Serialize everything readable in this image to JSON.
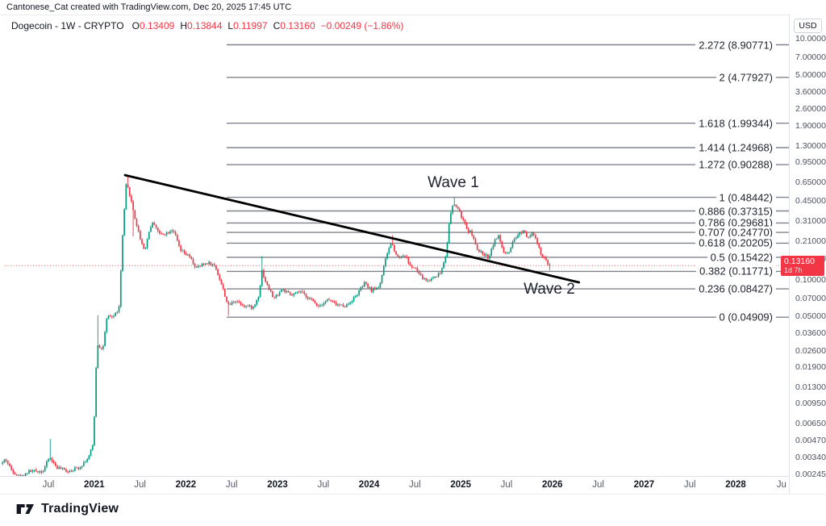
{
  "attribution": "Cantonese_Cat created with TradingView.com, Dec 20, 2025 17:45 UTC",
  "legend": {
    "title": "Dogecoin - 1W - CRYPTO",
    "o_label": "O",
    "o": "0.13409",
    "h_label": "H",
    "h": "0.13844",
    "l_label": "L",
    "l": "0.11997",
    "c_label": "C",
    "c": "0.13160",
    "change": "−0.00249 (−1.86%)"
  },
  "colors": {
    "up": "#089981",
    "down": "#f23645",
    "trendline": "#000000",
    "fib_line": "#80838e",
    "last_price_line": "#f23645",
    "badge_bg": "#f23645"
  },
  "annotations": {
    "wave1": {
      "text": "Wave 1",
      "t": 2024.92,
      "p": 0.635
    },
    "wave2": {
      "text": "Wave 2",
      "t": 2025.97,
      "p": 0.0832
    }
  },
  "price_axis": {
    "currency": "USD",
    "last_price": "0.13160",
    "last_price_value": 0.1316,
    "countdown": "1d 7h",
    "ticks": [
      "10.00000",
      "7.00000",
      "5.00000",
      "3.60000",
      "2.60000",
      "1.90000",
      "1.30000",
      "0.95000",
      "0.65000",
      "0.45000",
      "0.31000",
      "0.21000",
      "0.15000",
      "0.10000",
      "0.07000",
      "0.05000",
      "0.03600",
      "0.02600",
      "0.01900",
      "0.01300",
      "0.00950",
      "0.00650",
      "0.00470",
      "0.00340",
      "0.00245"
    ]
  },
  "time_axis": {
    "labels": [
      {
        "label": "Jul",
        "major": false
      },
      {
        "label": "2021",
        "major": true
      },
      {
        "label": "Jul",
        "major": false
      },
      {
        "label": "2022",
        "major": true
      },
      {
        "label": "Jul",
        "major": false
      },
      {
        "label": "2023",
        "major": true
      },
      {
        "label": "Jul",
        "major": false
      },
      {
        "label": "2024",
        "major": true
      },
      {
        "label": "Jul",
        "major": false
      },
      {
        "label": "2025",
        "major": true
      },
      {
        "label": "Jul",
        "major": false
      },
      {
        "label": "2026",
        "major": true
      },
      {
        "label": "Jul",
        "major": false
      },
      {
        "label": "2027",
        "major": true
      },
      {
        "label": "Jul",
        "major": false
      },
      {
        "label": "2028",
        "major": true
      },
      {
        "label": "Ju",
        "major": false
      }
    ]
  },
  "footer": {
    "logo_text": "TradingView"
  },
  "chart_data": {
    "type": "candlestick",
    "symbol": "Dogecoin",
    "timeframe": "1W",
    "market": "CRYPTO",
    "price_scale": "log",
    "x_domain_years": [
      2020.0,
      2028.55
    ],
    "last_candle": {
      "open": 0.13409,
      "high": 0.13844,
      "low": 0.11997,
      "close": 0.1316
    },
    "trendline": {
      "t1": 2021.336,
      "p1": 0.74,
      "t2": 2026.29,
      "p2": 0.0955
    },
    "fib_retracement": {
      "start_t": 2022.445,
      "levels": [
        {
          "level": "2.272",
          "price": "8.90771",
          "value": 8.90771
        },
        {
          "level": "2",
          "price": "4.77927",
          "value": 4.77927
        },
        {
          "level": "1.618",
          "price": "1.99344",
          "value": 1.99344
        },
        {
          "level": "1.414",
          "price": "1.24968",
          "value": 1.24968
        },
        {
          "level": "1.272",
          "price": "0.90288",
          "value": 0.90288
        },
        {
          "level": "1",
          "price": "0.48442",
          "value": 0.48442
        },
        {
          "level": "0.886",
          "price": "0.37315",
          "value": 0.37315
        },
        {
          "level": "0.786",
          "price": "0.29681",
          "value": 0.29681
        },
        {
          "level": "0.707",
          "price": "0.24770",
          "value": 0.2477
        },
        {
          "level": "0.618",
          "price": "0.20205",
          "value": 0.20205
        },
        {
          "level": "0.5",
          "price": "0.15422",
          "value": 0.15422
        },
        {
          "level": "0.382",
          "price": "0.11771",
          "value": 0.11771
        },
        {
          "level": "0.236",
          "price": "0.08427",
          "value": 0.08427
        },
        {
          "level": "0",
          "price": "0.04909",
          "value": 0.04909
        }
      ]
    },
    "price_path": [
      [
        2020.0,
        0.003
      ],
      [
        2020.04,
        0.0033
      ],
      [
        2020.1,
        0.0027
      ],
      [
        2020.2,
        0.0023
      ],
      [
        2020.3,
        0.0026
      ],
      [
        2020.45,
        0.0026
      ],
      [
        2020.52,
        0.0034
      ],
      [
        2020.6,
        0.0028
      ],
      [
        2020.72,
        0.0026
      ],
      [
        2020.85,
        0.0028
      ],
      [
        2020.95,
        0.0034
      ],
      [
        2021.0,
        0.0044
      ],
      [
        2021.04,
        0.03
      ],
      [
        2021.1,
        0.026
      ],
      [
        2021.15,
        0.049
      ],
      [
        2021.22,
        0.05
      ],
      [
        2021.28,
        0.058
      ],
      [
        2021.32,
        0.24
      ],
      [
        2021.36,
        0.64
      ],
      [
        2021.4,
        0.5
      ],
      [
        2021.46,
        0.31
      ],
      [
        2021.52,
        0.21
      ],
      [
        2021.56,
        0.175
      ],
      [
        2021.62,
        0.275
      ],
      [
        2021.66,
        0.3
      ],
      [
        2021.72,
        0.24
      ],
      [
        2021.8,
        0.245
      ],
      [
        2021.87,
        0.265
      ],
      [
        2021.95,
        0.175
      ],
      [
        2022.05,
        0.155
      ],
      [
        2022.12,
        0.125
      ],
      [
        2022.25,
        0.14
      ],
      [
        2022.33,
        0.13
      ],
      [
        2022.42,
        0.082
      ],
      [
        2022.47,
        0.061
      ],
      [
        2022.55,
        0.068
      ],
      [
        2022.65,
        0.061
      ],
      [
        2022.75,
        0.059
      ],
      [
        2022.81,
        0.077
      ],
      [
        2022.84,
        0.12
      ],
      [
        2022.89,
        0.092
      ],
      [
        2022.97,
        0.07
      ],
      [
        2023.06,
        0.084
      ],
      [
        2023.16,
        0.074
      ],
      [
        2023.26,
        0.08
      ],
      [
        2023.36,
        0.07
      ],
      [
        2023.46,
        0.061
      ],
      [
        2023.56,
        0.069
      ],
      [
        2023.66,
        0.062
      ],
      [
        2023.76,
        0.061
      ],
      [
        2023.86,
        0.073
      ],
      [
        2023.96,
        0.094
      ],
      [
        2024.03,
        0.082
      ],
      [
        2024.12,
        0.088
      ],
      [
        2024.2,
        0.16
      ],
      [
        2024.25,
        0.205
      ],
      [
        2024.32,
        0.155
      ],
      [
        2024.4,
        0.16
      ],
      [
        2024.46,
        0.13
      ],
      [
        2024.52,
        0.123
      ],
      [
        2024.58,
        0.105
      ],
      [
        2024.65,
        0.098
      ],
      [
        2024.72,
        0.106
      ],
      [
        2024.79,
        0.115
      ],
      [
        2024.85,
        0.165
      ],
      [
        2024.89,
        0.33
      ],
      [
        2024.93,
        0.43
      ],
      [
        2024.97,
        0.4
      ],
      [
        2025.02,
        0.33
      ],
      [
        2025.08,
        0.26
      ],
      [
        2025.13,
        0.245
      ],
      [
        2025.19,
        0.175
      ],
      [
        2025.26,
        0.165
      ],
      [
        2025.31,
        0.152
      ],
      [
        2025.38,
        0.215
      ],
      [
        2025.42,
        0.23
      ],
      [
        2025.48,
        0.168
      ],
      [
        2025.53,
        0.162
      ],
      [
        2025.58,
        0.205
      ],
      [
        2025.64,
        0.24
      ],
      [
        2025.7,
        0.26
      ],
      [
        2025.74,
        0.225
      ],
      [
        2025.79,
        0.25
      ],
      [
        2025.84,
        0.205
      ],
      [
        2025.88,
        0.165
      ],
      [
        2025.93,
        0.148
      ],
      [
        2025.97,
        0.1316
      ]
    ],
    "spike_highs": [
      [
        2020.52,
        0.0048
      ],
      [
        2021.04,
        0.051
      ],
      [
        2021.36,
        0.739
      ],
      [
        2022.84,
        0.158
      ],
      [
        2024.25,
        0.235
      ],
      [
        2024.93,
        0.48442
      ]
    ],
    "spike_lows": [
      [
        2020.2,
        0.00205
      ],
      [
        2021.42,
        0.23
      ],
      [
        2022.47,
        0.0505
      ]
    ]
  }
}
